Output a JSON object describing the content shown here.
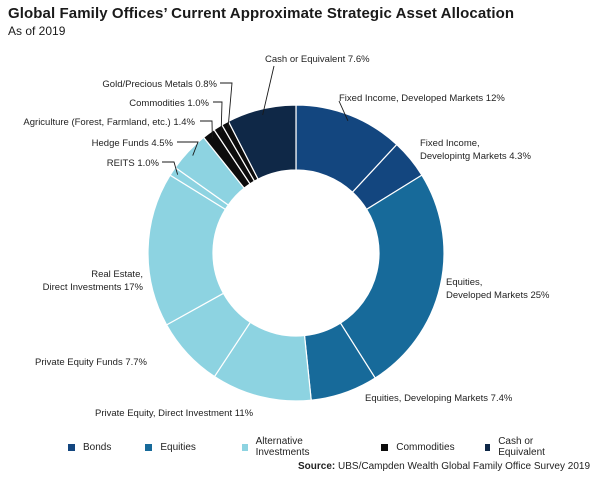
{
  "header": {
    "title": "Global Family Offices’ Current Approximate Strategic Asset Allocation",
    "subtitle": "As of 2019"
  },
  "source": {
    "label": "Source:",
    "text": "UBS/Campden Wealth Global Family Office Survey 2019"
  },
  "colors": {
    "bonds": "#13467f",
    "equities": "#176a9a",
    "alternatives": "#8dd3e1",
    "commodities": "#0c0c0c",
    "cash": "#0f2847",
    "separator": "#ffffff",
    "leader": "#1a1a1a"
  },
  "legend": [
    {
      "label": "Bonds",
      "group": "bonds"
    },
    {
      "label": "Equities",
      "group": "equities"
    },
    {
      "label": "Alternative Investments",
      "group": "alternatives"
    },
    {
      "label": "Commodities",
      "group": "commodities"
    },
    {
      "label": "Cash or Equivalent",
      "group": "cash"
    }
  ],
  "chart_data": {
    "type": "pie",
    "donut": true,
    "title": "Global Family Offices’ Current Approximate Strategic Asset Allocation",
    "subtitle": "As of 2019",
    "unit": "%",
    "slices": [
      {
        "name": "Fixed Income, Developed Markets",
        "value": 12,
        "group": "bonds",
        "label_lines": [
          "Fixed Income, Developed Markets 12%"
        ]
      },
      {
        "name": "Fixed Income, Developintg Markets",
        "value": 4.3,
        "group": "bonds",
        "label_lines": [
          "Fixed Income,",
          "Developintg Markets 4.3%"
        ]
      },
      {
        "name": "Equities, Developed Markets",
        "value": 25,
        "group": "equities",
        "label_lines": [
          "Equities,",
          "Developed Markets 25%"
        ]
      },
      {
        "name": "Equities, Developing Markets",
        "value": 7.4,
        "group": "equities",
        "label_lines": [
          "Equities, Developing Markets 7.4%"
        ]
      },
      {
        "name": "Private Equity, Direct Investment",
        "value": 11,
        "group": "alternatives",
        "label_lines": [
          "Private Equity, Direct Investment 11%"
        ]
      },
      {
        "name": "Private Equity Funds",
        "value": 7.7,
        "group": "alternatives",
        "label_lines": [
          "Private Equity Funds 7.7%"
        ]
      },
      {
        "name": "Real Estate, Direct Investments",
        "value": 17,
        "group": "alternatives",
        "label_lines": [
          "Real Estate,",
          "Direct Investments 17%"
        ]
      },
      {
        "name": "REITS",
        "value": 1.0,
        "group": "alternatives",
        "label_lines": [
          "REITS 1.0%"
        ]
      },
      {
        "name": "Hedge Funds",
        "value": 4.5,
        "group": "alternatives",
        "label_lines": [
          "Hedge Funds 4.5%"
        ]
      },
      {
        "name": "Agriculture (Forest, Farmland, etc.)",
        "value": 1.4,
        "group": "commodities",
        "label_lines": [
          "Agriculture (Forest, Farmland, etc.) 1.4%"
        ]
      },
      {
        "name": "Commodities",
        "value": 1.0,
        "group": "commodities",
        "label_lines": [
          "Commodities 1.0%"
        ]
      },
      {
        "name": "Gold/Precious Metals",
        "value": 0.8,
        "group": "commodities",
        "label_lines": [
          "Gold/Precious Metals 0.8%"
        ]
      },
      {
        "name": "Cash or Equivalent",
        "value": 7.6,
        "group": "cash",
        "label_lines": [
          "Cash or Equivalent 7.6%"
        ]
      }
    ]
  }
}
